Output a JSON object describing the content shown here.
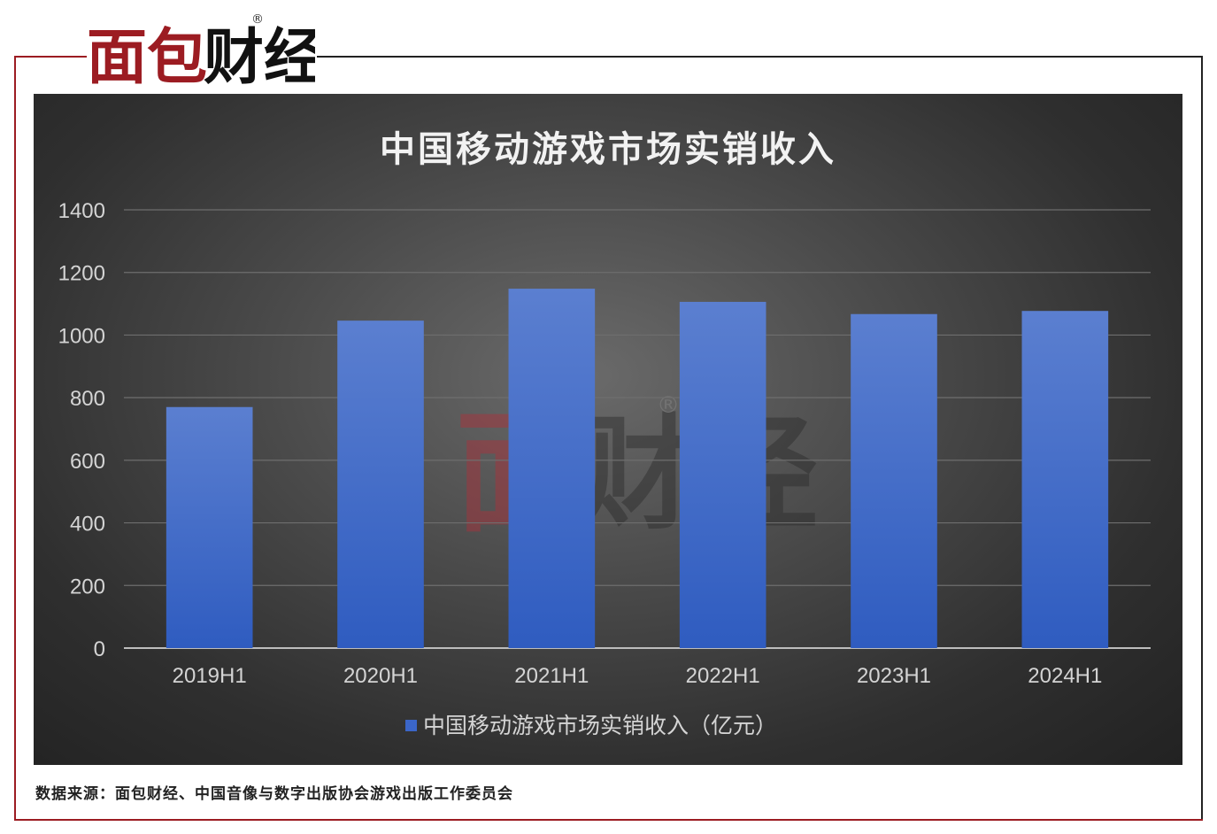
{
  "brand": {
    "logo_text": "面包财经",
    "registered_mark": "®"
  },
  "chart_data": {
    "type": "bar",
    "title": "中国移动游戏市场实销收入",
    "categories": [
      "2019H1",
      "2020H1",
      "2021H1",
      "2022H1",
      "2023H1",
      "2024H1"
    ],
    "series": [
      {
        "name": "中国移动游戏市场实销收入（亿元）",
        "values": [
          770,
          1046,
          1148,
          1106,
          1067,
          1077
        ]
      }
    ],
    "ylim": [
      0,
      1400
    ],
    "yticks": [
      "0",
      "200",
      "400",
      "600",
      "800",
      "1000",
      "1200",
      "1400"
    ],
    "grid": true,
    "legend_position": "bottom",
    "colors": {
      "bar_top": "#5b7fd0",
      "bar_bottom": "#2f5cc0",
      "legend_marker": "#3b66c8"
    }
  },
  "footer": {
    "source_text": "数据来源：面包财经、中国音像与数字出版协会游戏出版工作委员会"
  }
}
